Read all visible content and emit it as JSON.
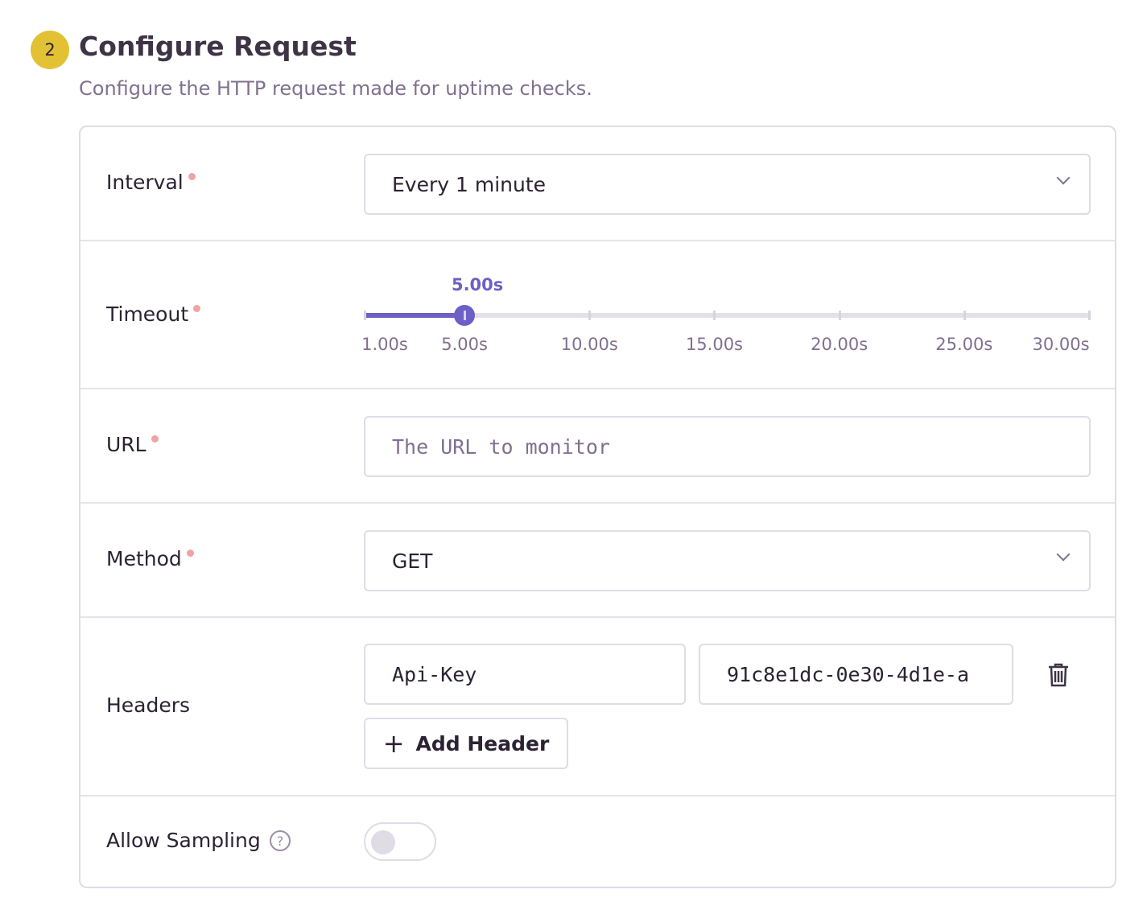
{
  "section": {
    "step": "2",
    "title": "Configure Request",
    "subtitle": "Configure the HTTP request made for uptime checks."
  },
  "interval": {
    "label": "Interval",
    "value": "Every 1 minute"
  },
  "timeout": {
    "label": "Timeout",
    "value": 5,
    "value_label": "5.00s",
    "min": 1,
    "max": 30,
    "accent": "#6c5fc7",
    "ticks": [
      1,
      5,
      10,
      15,
      20,
      25,
      30
    ],
    "tick_labels": [
      "1.00s",
      "5.00s",
      "10.00s",
      "15.00s",
      "20.00s",
      "25.00s",
      "30.00s"
    ]
  },
  "url": {
    "label": "URL",
    "placeholder": "The URL to monitor"
  },
  "method": {
    "label": "Method",
    "value": "GET"
  },
  "headers": {
    "label": "Headers",
    "items": [
      {
        "name": "Api-Key",
        "value": "91c8e1dc-0e30-4d1e-a"
      }
    ],
    "add_label": "Add Header"
  },
  "sampling": {
    "label": "Allow Sampling",
    "enabled": false
  }
}
